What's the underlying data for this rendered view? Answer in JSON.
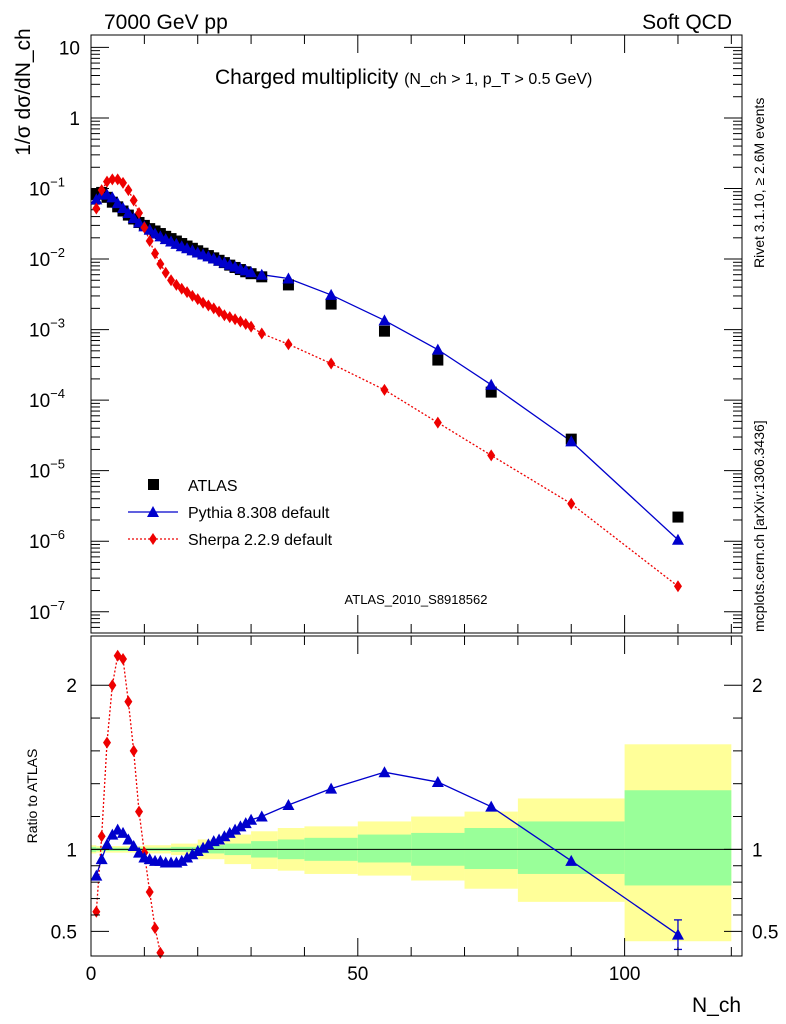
{
  "header": {
    "left_label": "7000 GeV pp",
    "right_label": "Soft QCD",
    "side_text_top": "Rivet 3.1.10, ≥ 2.6M events",
    "side_text_bottom": "mcplots.cern.ch [arXiv:1306.3436]",
    "analysis_id": "ATLAS_2010_S8918562"
  },
  "colors": {
    "atlas": "#000000",
    "pythia": "#0000cc",
    "sherpa": "#ee0000",
    "band_inner": "#99ff99",
    "band_outer": "#ffff99"
  },
  "chart_data": [
    {
      "type": "scatter",
      "title": "Charged multiplicity",
      "title_sub": "(N_ch > 1, p_T > 0.5 GeV)",
      "ylabel": "1/σ dσ/dN_ch",
      "yscale": "log",
      "ylim": [
        5e-08,
        15
      ],
      "xlim": [
        0,
        122
      ],
      "y_ticks": [
        {
          "v": 10,
          "label": "10"
        },
        {
          "v": 1,
          "label": "1"
        },
        {
          "v": 0.1,
          "label": "10",
          "exp": "−1"
        },
        {
          "v": 0.01,
          "label": "10",
          "exp": "−2"
        },
        {
          "v": 0.001,
          "label": "10",
          "exp": "−3"
        },
        {
          "v": 0.0001,
          "label": "10",
          "exp": "−4"
        },
        {
          "v": 1e-05,
          "label": "10",
          "exp": "−5"
        },
        {
          "v": 1e-06,
          "label": "10",
          "exp": "−6"
        },
        {
          "v": 1e-07,
          "label": "10",
          "exp": "−7"
        }
      ],
      "legend_position": "bottom-left",
      "series": [
        {
          "name": "ATLAS",
          "marker": "square",
          "x": [
            1,
            2,
            3,
            4,
            5,
            6,
            7,
            8,
            9,
            10,
            11,
            12,
            13,
            14,
            15,
            16,
            17,
            18,
            19,
            20,
            21,
            22,
            23,
            24,
            25,
            26,
            27,
            28,
            29,
            30,
            32,
            37,
            45,
            55,
            65,
            75,
            90,
            110
          ],
          "y": [
            0.083,
            0.088,
            0.075,
            0.064,
            0.055,
            0.048,
            0.042,
            0.037,
            0.033,
            0.03,
            0.027,
            0.025,
            0.023,
            0.021,
            0.0195,
            0.018,
            0.0166,
            0.0153,
            0.0142,
            0.0131,
            0.0121,
            0.0112,
            0.0104,
            0.0096,
            0.0089,
            0.0082,
            0.0076,
            0.0071,
            0.0066,
            0.0062,
            0.0056,
            0.0043,
            0.0023,
            0.00095,
            0.00037,
            0.00013,
            2.8e-05,
            2.2e-06
          ]
        },
        {
          "name": "Pythia 8.308 default",
          "marker": "triangle",
          "x": [
            1,
            2,
            3,
            4,
            5,
            6,
            7,
            8,
            9,
            10,
            11,
            12,
            13,
            14,
            15,
            16,
            17,
            18,
            19,
            20,
            21,
            22,
            23,
            24,
            25,
            26,
            27,
            28,
            29,
            30,
            32,
            37,
            45,
            55,
            65,
            75,
            90,
            110
          ],
          "y": [
            0.07,
            0.083,
            0.082,
            0.075,
            0.062,
            0.053,
            0.045,
            0.038,
            0.033,
            0.029,
            0.026,
            0.023,
            0.021,
            0.0192,
            0.0177,
            0.0164,
            0.0152,
            0.0142,
            0.0133,
            0.0124,
            0.0116,
            0.0109,
            0.0102,
            0.0095,
            0.0089,
            0.0083,
            0.0078,
            0.0073,
            0.0069,
            0.0065,
            0.006,
            0.0053,
            0.0031,
            0.00135,
            0.00052,
            0.000165,
            2.6e-05,
            1.05e-06
          ]
        },
        {
          "name": "Sherpa 2.2.9 default",
          "marker": "diamond",
          "x": [
            1,
            2,
            3,
            4,
            5,
            6,
            7,
            8,
            9,
            10,
            11,
            12,
            13,
            14,
            15,
            16,
            17,
            18,
            19,
            20,
            21,
            22,
            23,
            24,
            25,
            26,
            27,
            28,
            29,
            30,
            32,
            37,
            45,
            55,
            65,
            75,
            90,
            110
          ],
          "y": [
            0.052,
            0.095,
            0.125,
            0.135,
            0.135,
            0.12,
            0.095,
            0.068,
            0.045,
            0.028,
            0.018,
            0.012,
            0.0085,
            0.0064,
            0.005,
            0.0043,
            0.0038,
            0.0034,
            0.003,
            0.0027,
            0.0024,
            0.0022,
            0.002,
            0.0018,
            0.0016,
            0.0015,
            0.0014,
            0.0013,
            0.0012,
            0.0011,
            0.00088,
            0.00062,
            0.00033,
            0.00014,
            4.8e-05,
            1.65e-05,
            3.4e-06,
            2.3e-07
          ]
        }
      ]
    },
    {
      "type": "line",
      "ylabel": "Ratio to ATLAS",
      "xlabel": "N_ch",
      "ylim": [
        0.35,
        2.3
      ],
      "xlim": [
        0,
        122
      ],
      "y_ticks": [
        0.5,
        1,
        2
      ],
      "x_ticks": [
        0,
        50,
        100
      ],
      "reference_line": 1,
      "uncertainty_bands": [
        {
          "x0": 0,
          "x1": 1,
          "inner": [
            0.985,
            1.015
          ],
          "outer": [
            0.975,
            1.025
          ]
        },
        {
          "x0": 1,
          "x1": 2,
          "inner": [
            0.99,
            1.01
          ],
          "outer": [
            0.98,
            1.02
          ]
        },
        {
          "x0": 2,
          "x1": 10,
          "inner": [
            0.99,
            1.01
          ],
          "outer": [
            0.98,
            1.02
          ]
        },
        {
          "x0": 10,
          "x1": 15,
          "inner": [
            0.99,
            1.01
          ],
          "outer": [
            0.975,
            1.025
          ]
        },
        {
          "x0": 15,
          "x1": 20,
          "inner": [
            0.985,
            1.015
          ],
          "outer": [
            0.965,
            1.035
          ]
        },
        {
          "x0": 20,
          "x1": 25,
          "inner": [
            0.975,
            1.025
          ],
          "outer": [
            0.94,
            1.06
          ]
        },
        {
          "x0": 25,
          "x1": 30,
          "inner": [
            0.965,
            1.035
          ],
          "outer": [
            0.91,
            1.09
          ]
        },
        {
          "x0": 30,
          "x1": 35,
          "inner": [
            0.95,
            1.05
          ],
          "outer": [
            0.88,
            1.11
          ]
        },
        {
          "x0": 35,
          "x1": 40,
          "inner": [
            0.94,
            1.06
          ],
          "outer": [
            0.87,
            1.13
          ]
        },
        {
          "x0": 40,
          "x1": 50,
          "inner": [
            0.93,
            1.07
          ],
          "outer": [
            0.85,
            1.14
          ]
        },
        {
          "x0": 50,
          "x1": 60,
          "inner": [
            0.92,
            1.09
          ],
          "outer": [
            0.84,
            1.17
          ]
        },
        {
          "x0": 60,
          "x1": 70,
          "inner": [
            0.9,
            1.1
          ],
          "outer": [
            0.81,
            1.2
          ]
        },
        {
          "x0": 70,
          "x1": 80,
          "inner": [
            0.88,
            1.13
          ],
          "outer": [
            0.76,
            1.23
          ]
        },
        {
          "x0": 80,
          "x1": 100,
          "inner": [
            0.85,
            1.17
          ],
          "outer": [
            0.68,
            1.31
          ]
        },
        {
          "x0": 100,
          "x1": 120,
          "inner": [
            0.78,
            1.36
          ],
          "outer": [
            0.44,
            1.64
          ]
        }
      ],
      "series": [
        {
          "name": "Pythia 8.308 default",
          "marker": "triangle",
          "x": [
            1,
            2,
            3,
            4,
            5,
            6,
            7,
            8,
            9,
            10,
            11,
            12,
            13,
            14,
            15,
            16,
            17,
            18,
            19,
            20,
            21,
            22,
            23,
            24,
            25,
            26,
            27,
            28,
            29,
            30,
            32,
            37,
            45,
            55,
            65,
            75,
            90,
            110
          ],
          "y": [
            0.84,
            0.94,
            1.03,
            1.09,
            1.12,
            1.1,
            1.06,
            1.02,
            0.98,
            0.95,
            0.94,
            0.93,
            0.93,
            0.92,
            0.92,
            0.92,
            0.93,
            0.95,
            0.97,
            0.99,
            1.01,
            1.03,
            1.05,
            1.06,
            1.08,
            1.1,
            1.12,
            1.14,
            1.16,
            1.18,
            1.2,
            1.27,
            1.37,
            1.47,
            1.41,
            1.26,
            0.93,
            0.48
          ],
          "error_last": 0.09
        },
        {
          "name": "Sherpa 2.2.9 default",
          "marker": "diamond",
          "x": [
            1,
            2,
            3,
            4,
            5,
            6,
            7,
            8,
            9,
            10,
            11,
            12,
            13
          ],
          "y": [
            0.62,
            1.08,
            1.65,
            2.0,
            2.18,
            2.16,
            1.9,
            1.6,
            1.23,
            0.98,
            0.74,
            0.52,
            0.37
          ]
        }
      ]
    }
  ],
  "legend": {
    "atlas": "ATLAS",
    "pythia": "Pythia 8.308 default",
    "sherpa": "Sherpa 2.2.9 default"
  }
}
